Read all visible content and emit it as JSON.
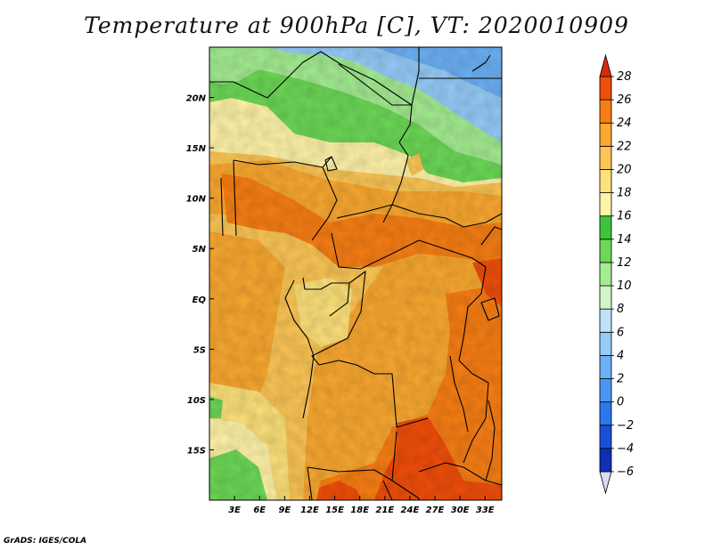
{
  "title": "Temperature at 900hPa [C], VT: 2020010909",
  "credit": "GrADS: IGES/COLA",
  "map": {
    "lon_range": [
      0,
      35
    ],
    "lat_range": [
      -20,
      25
    ],
    "lon_ticks": [
      {
        "value": 3,
        "label": "3E"
      },
      {
        "value": 6,
        "label": "6E"
      },
      {
        "value": 9,
        "label": "9E"
      },
      {
        "value": 12,
        "label": "12E"
      },
      {
        "value": 15,
        "label": "15E"
      },
      {
        "value": 18,
        "label": "18E"
      },
      {
        "value": 21,
        "label": "21E"
      },
      {
        "value": 24,
        "label": "24E"
      },
      {
        "value": 27,
        "label": "27E"
      },
      {
        "value": 30,
        "label": "30E"
      },
      {
        "value": 33,
        "label": "33E"
      }
    ],
    "lat_ticks": [
      {
        "value": 20,
        "label": "20N"
      },
      {
        "value": 15,
        "label": "15N"
      },
      {
        "value": 10,
        "label": "10N"
      },
      {
        "value": 5,
        "label": "5N"
      },
      {
        "value": 0,
        "label": "EQ"
      },
      {
        "value": -5,
        "label": "5S"
      },
      {
        "value": -10,
        "label": "10S"
      },
      {
        "value": -15,
        "label": "15S"
      }
    ],
    "border_color": "#000000"
  },
  "colorbar": {
    "levels": [
      -6,
      -4,
      -2,
      0,
      2,
      4,
      6,
      8,
      10,
      12,
      14,
      16,
      18,
      20,
      22,
      24,
      26,
      28
    ],
    "colors": [
      "#0a0a8c",
      "#0f2fb4",
      "#1a50d8",
      "#2a78ee",
      "#4a96f2",
      "#6cb0f5",
      "#96cbf8",
      "#bfe2fb",
      "#d2f5c8",
      "#a4ec92",
      "#6cd856",
      "#3cc43c",
      "#fff3a8",
      "#fde17a",
      "#fcc656",
      "#f9a830",
      "#f77e14",
      "#f04e0a",
      "#d82a0a"
    ]
  }
}
